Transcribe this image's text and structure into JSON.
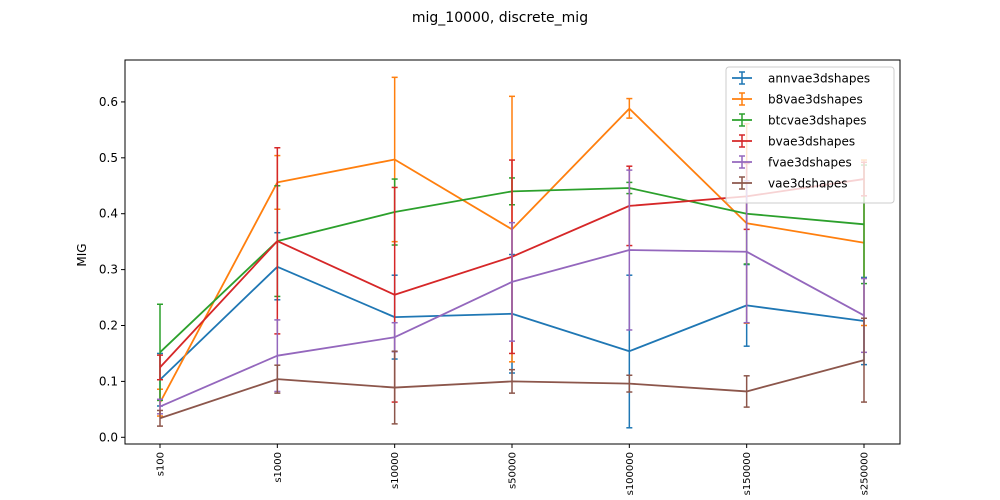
{
  "chart_data": {
    "type": "line",
    "title": "mig_10000, discrete_mig",
    "xlabel": "",
    "ylabel": "MIG",
    "categories": [
      "s100",
      "s1000",
      "s10000",
      "s50000",
      "s100000",
      "s150000",
      "s250000"
    ],
    "ylim": [
      -0.012,
      0.675
    ],
    "yticks": [
      0.0,
      0.1,
      0.2,
      0.3,
      0.4,
      0.5,
      0.6
    ],
    "ytick_labels": [
      "0.0",
      "0.1",
      "0.2",
      "0.3",
      "0.4",
      "0.5",
      "0.6"
    ],
    "grid": false,
    "legend_position": "top-right",
    "error_bars": true,
    "series": [
      {
        "name": "annvae3dshapes",
        "color": "#1f77b4",
        "values": [
          0.103,
          0.305,
          0.215,
          0.221,
          0.154,
          0.236,
          0.208
        ],
        "err_low": [
          0.056,
          0.246,
          0.14,
          0.115,
          0.017,
          0.163,
          0.13
        ],
        "err_high": [
          0.15,
          0.366,
          0.29,
          0.327,
          0.29,
          0.309,
          0.286
        ]
      },
      {
        "name": "b8vae3dshapes",
        "color": "#ff7f0e",
        "values": [
          0.062,
          0.456,
          0.497,
          0.372,
          0.588,
          0.383,
          0.348
        ],
        "err_low": [
          0.038,
          0.408,
          0.35,
          0.135,
          0.571,
          0.204,
          0.2
        ],
        "err_high": [
          0.086,
          0.504,
          0.644,
          0.61,
          0.606,
          0.561,
          0.496
        ]
      },
      {
        "name": "btcvae3dshapes",
        "color": "#2ca02c",
        "values": [
          0.152,
          0.351,
          0.403,
          0.44,
          0.446,
          0.4,
          0.381
        ],
        "err_low": [
          0.066,
          0.252,
          0.344,
          0.416,
          0.436,
          0.31,
          0.275
        ],
        "err_high": [
          0.238,
          0.45,
          0.462,
          0.464,
          0.456,
          0.49,
          0.487
        ]
      },
      {
        "name": "bvae3dshapes",
        "color": "#d62728",
        "values": [
          0.125,
          0.351,
          0.255,
          0.323,
          0.414,
          0.431,
          0.462
        ],
        "err_low": [
          0.103,
          0.185,
          0.063,
          0.15,
          0.343,
          0.372,
          0.432
        ],
        "err_high": [
          0.147,
          0.518,
          0.447,
          0.496,
          0.485,
          0.49,
          0.492
        ]
      },
      {
        "name": "fvae3dshapes",
        "color": "#9467bd",
        "values": [
          0.055,
          0.146,
          0.179,
          0.278,
          0.335,
          0.332,
          0.218
        ],
        "err_low": [
          0.042,
          0.082,
          0.153,
          0.172,
          0.192,
          0.205,
          0.152
        ],
        "err_high": [
          0.068,
          0.21,
          0.205,
          0.384,
          0.478,
          0.459,
          0.284
        ]
      },
      {
        "name": "vae3dshapes",
        "color": "#8c564b",
        "values": [
          0.034,
          0.104,
          0.089,
          0.1,
          0.096,
          0.082,
          0.138
        ],
        "err_low": [
          0.02,
          0.079,
          0.024,
          0.079,
          0.081,
          0.054,
          0.063
        ],
        "err_high": [
          0.048,
          0.129,
          0.154,
          0.121,
          0.111,
          0.11,
          0.213
        ]
      }
    ]
  }
}
